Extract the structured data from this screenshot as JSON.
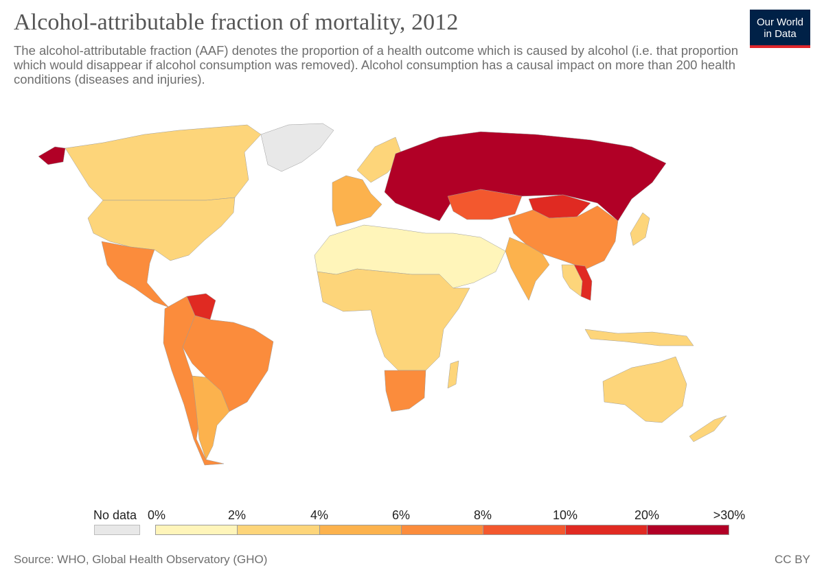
{
  "header": {
    "title": "Alcohol-attributable fraction of mortality, 2012",
    "subtitle": "The alcohol-attributable fraction (AAF) denotes the proportion of a health outcome which is caused by alcohol (i.e. that proportion which would disappear if alcohol consumption was removed). Alcohol consumption has a causal impact on more than 200 health conditions (diseases and injuries).",
    "logo_line1": "Our World",
    "logo_line2": "in Data"
  },
  "legend": {
    "nodata_label": "No data",
    "nodata_color": "#e8e8e8",
    "labels": [
      "0%",
      "2%",
      "4%",
      "6%",
      "8%",
      "10%",
      "20%",
      ">30%"
    ],
    "colors": [
      "#fff5ba",
      "#fdd57a",
      "#fcb24d",
      "#fb8c3c",
      "#f3582e",
      "#e02a22",
      "#b10026"
    ]
  },
  "chart_data": {
    "type": "choropleth",
    "title": "Alcohol-attributable fraction of mortality, 2012",
    "unit": "%",
    "bins": [
      "0-2%",
      "2-4%",
      "4-6%",
      "6-8%",
      "8-10%",
      "10-20%",
      "20-30%+"
    ],
    "regions": [
      {
        "name": "Russia & Eastern Europe",
        "bin": 6
      },
      {
        "name": "Kazakhstan",
        "bin": 4
      },
      {
        "name": "Mongolia",
        "bin": 5
      },
      {
        "name": "Venezuela",
        "bin": 5
      },
      {
        "name": "Vietnam",
        "bin": 5
      },
      {
        "name": "China",
        "bin": 3
      },
      {
        "name": "Brazil",
        "bin": 3
      },
      {
        "name": "Mexico",
        "bin": 3
      },
      {
        "name": "South Africa",
        "bin": 3
      },
      {
        "name": "India",
        "bin": 2
      },
      {
        "name": "Western Europe",
        "bin": 2
      },
      {
        "name": "United States",
        "bin": 1
      },
      {
        "name": "Canada",
        "bin": 1
      },
      {
        "name": "Australia",
        "bin": 1
      },
      {
        "name": "North Africa & Middle East",
        "bin": 0
      },
      {
        "name": "Greenland",
        "bin": null
      }
    ]
  },
  "footer": {
    "source": "Source: WHO, Global Health Observatory (GHO)",
    "license": "CC BY"
  }
}
